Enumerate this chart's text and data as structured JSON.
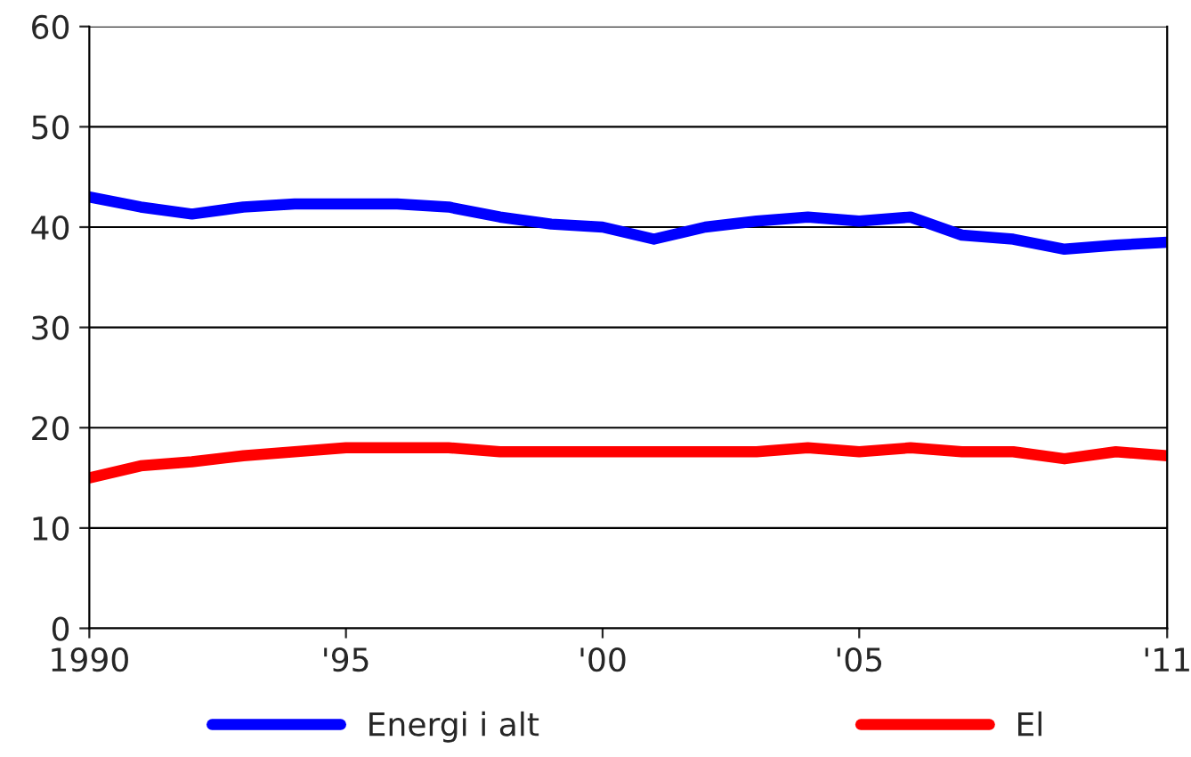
{
  "chart_data": {
    "type": "line",
    "x": [
      1990,
      1991,
      1992,
      1993,
      1994,
      1995,
      1996,
      1997,
      1998,
      1999,
      2000,
      2001,
      2002,
      2003,
      2004,
      2005,
      2006,
      2007,
      2008,
      2009,
      2010,
      2011
    ],
    "series": [
      {
        "name": "Energi i alt",
        "color": "#0000ff",
        "values": [
          43,
          42,
          41.3,
          42,
          42.3,
          42.3,
          42.3,
          42,
          41,
          40.3,
          40,
          38.8,
          40,
          40.6,
          41,
          40.6,
          41,
          39.2,
          38.8,
          37.8,
          38.2,
          38.5
        ]
      },
      {
        "name": "El",
        "color": "#ff0000",
        "values": [
          15,
          16.2,
          16.6,
          17.2,
          17.6,
          18,
          18,
          18,
          17.6,
          17.6,
          17.6,
          17.6,
          17.6,
          17.6,
          18,
          17.6,
          18,
          17.6,
          17.6,
          16.9,
          17.6,
          17.2
        ]
      }
    ],
    "xlim": [
      1990,
      2011
    ],
    "xticks": [
      1990,
      {
        "value": 1995,
        "label": "'95"
      },
      {
        "value": 2000,
        "label": "'00"
      },
      {
        "value": 2005,
        "label": "'05"
      },
      {
        "value": 2011,
        "label": "'11"
      }
    ],
    "ylim": [
      0,
      60
    ],
    "yticks": [
      0,
      10,
      20,
      30,
      40,
      50,
      60
    ],
    "grid": "y",
    "legend": "bottom",
    "marker": "none",
    "line_style": "solid"
  }
}
